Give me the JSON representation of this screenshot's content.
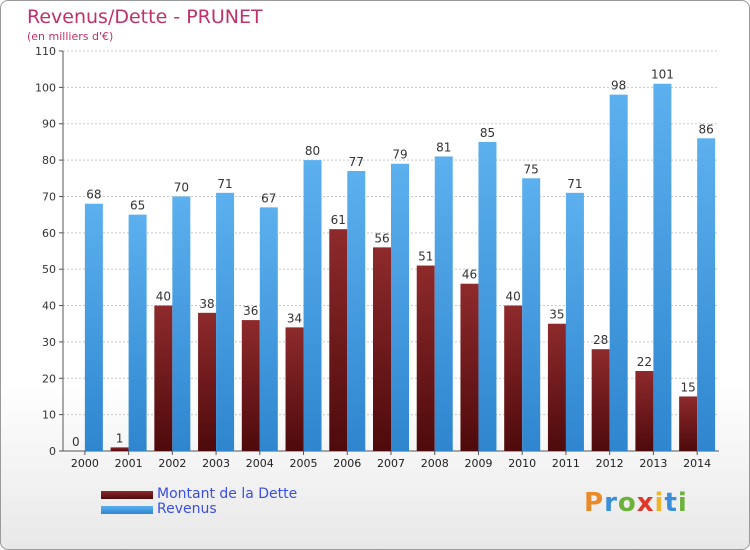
{
  "title": "Revenus/Dette - PRUNET",
  "subtitle": "(en milliers d'€)",
  "logo": [
    "P",
    "r",
    "o",
    "x",
    "i",
    "t",
    "i"
  ],
  "chart_data": {
    "type": "bar",
    "title": "Revenus/Dette - PRUNET",
    "ylabel": "(en milliers d'€)",
    "xlabel": "",
    "ylim": [
      0,
      110
    ],
    "yticks": [
      0,
      10,
      20,
      30,
      40,
      50,
      60,
      70,
      80,
      90,
      100,
      110
    ],
    "grid": true,
    "legend_position": "bottom-left",
    "categories": [
      "2000",
      "2001",
      "2002",
      "2003",
      "2004",
      "2005",
      "2006",
      "2007",
      "2008",
      "2009",
      "2010",
      "2011",
      "2012",
      "2013",
      "2014"
    ],
    "series": [
      {
        "name": "Montant de la Dette",
        "color": "#7a1a1e",
        "values": [
          0,
          1,
          40,
          38,
          36,
          34,
          61,
          56,
          51,
          46,
          40,
          35,
          28,
          22,
          15
        ]
      },
      {
        "name": "Revenus",
        "color": "#4a9fe0",
        "values": [
          68,
          65,
          70,
          71,
          67,
          80,
          77,
          79,
          81,
          85,
          75,
          71,
          98,
          101,
          86
        ]
      }
    ]
  }
}
